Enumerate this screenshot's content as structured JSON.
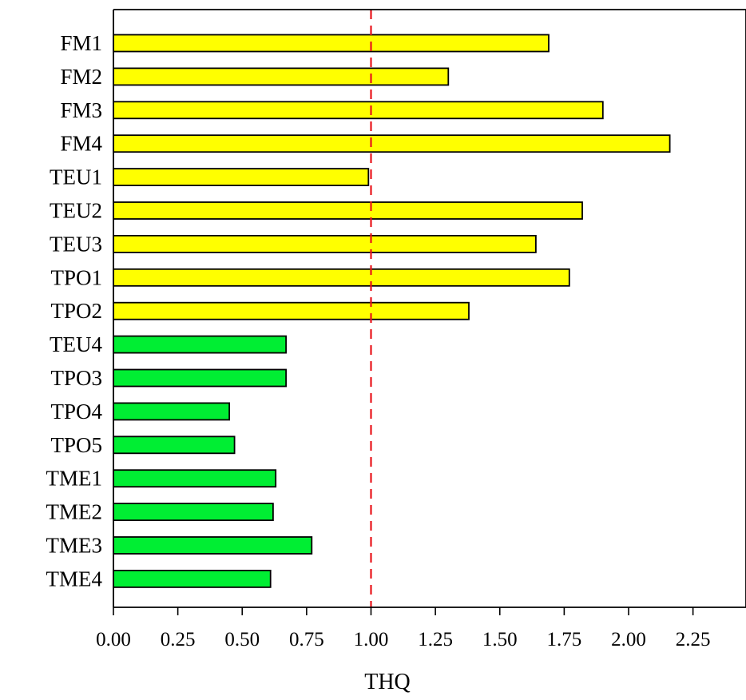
{
  "chart_data": {
    "type": "bar",
    "orientation": "horizontal",
    "xlabel": "THQ",
    "ylabel": "",
    "title": "",
    "xlim": [
      0,
      2.5
    ],
    "xticks": [
      "0.00",
      "0.25",
      "0.50",
      "0.75",
      "1.00",
      "1.25",
      "1.50",
      "1.75",
      "2.00",
      "2.25"
    ],
    "categories": [
      "FM1",
      "FM2",
      "FM3",
      "FM4",
      "TEU1",
      "TEU2",
      "TEU3",
      "TPO1",
      "TPO2",
      "TEU4",
      "TPO3",
      "TPO4",
      "TPO5",
      "TME1",
      "TME2",
      "TME3",
      "TME4"
    ],
    "values": [
      1.69,
      1.3,
      1.9,
      2.16,
      0.99,
      1.82,
      1.64,
      1.77,
      1.38,
      0.67,
      0.67,
      0.45,
      0.47,
      0.63,
      0.62,
      0.77,
      0.61
    ],
    "colors": [
      "#ffff00",
      "#ffff00",
      "#ffff00",
      "#ffff00",
      "#ffff00",
      "#ffff00",
      "#ffff00",
      "#ffff00",
      "#ffff00",
      "#00ee33",
      "#00ee33",
      "#00ee33",
      "#00ee33",
      "#00ee33",
      "#00ee33",
      "#00ee33",
      "#00ee33"
    ],
    "reference_line": {
      "value": 1.0,
      "color": "#e8141b",
      "style": "dashed"
    },
    "grid": false,
    "legend": "none"
  }
}
